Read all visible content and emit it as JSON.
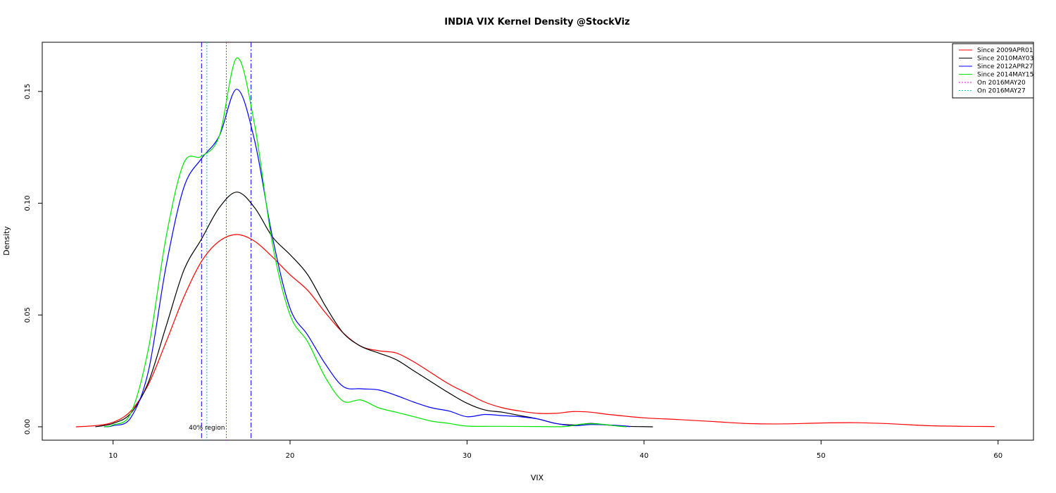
{
  "chart_data": {
    "type": "line",
    "title": "INDIA VIX Kernel Density @StockViz",
    "xlabel": "VIX",
    "ylabel": "Density",
    "xlim": [
      6,
      62
    ],
    "ylim": [
      -0.006,
      0.172
    ],
    "x_ticks": [
      10,
      20,
      30,
      40,
      50,
      60
    ],
    "y_ticks": [
      0.0,
      0.05,
      0.1,
      0.15
    ],
    "x_tick_labels": [
      "10",
      "20",
      "30",
      "40",
      "50",
      "60"
    ],
    "y_tick_labels": [
      "0.00",
      "0.05",
      "0.10",
      "0.15"
    ],
    "grid": false,
    "legend_position": "top-right",
    "series": [
      {
        "name": "Since 2009APR01",
        "color": "#ff0000",
        "style": "solid",
        "points": [
          [
            7.9,
            0
          ],
          [
            9,
            0.0005
          ],
          [
            10,
            0.002
          ],
          [
            11,
            0.007
          ],
          [
            12,
            0.019
          ],
          [
            13,
            0.038
          ],
          [
            14,
            0.058
          ],
          [
            15,
            0.074
          ],
          [
            16,
            0.083
          ],
          [
            17,
            0.086
          ],
          [
            18,
            0.083
          ],
          [
            19,
            0.076
          ],
          [
            20,
            0.068
          ],
          [
            21,
            0.061
          ],
          [
            22,
            0.051
          ],
          [
            23,
            0.042
          ],
          [
            24,
            0.036
          ],
          [
            25,
            0.034
          ],
          [
            26,
            0.033
          ],
          [
            27,
            0.029
          ],
          [
            28,
            0.024
          ],
          [
            29,
            0.019
          ],
          [
            30,
            0.015
          ],
          [
            31,
            0.011
          ],
          [
            32,
            0.0085
          ],
          [
            33,
            0.007
          ],
          [
            34,
            0.006
          ],
          [
            35,
            0.006
          ],
          [
            36,
            0.0068
          ],
          [
            37,
            0.0065
          ],
          [
            38,
            0.0055
          ],
          [
            40,
            0.004
          ],
          [
            42,
            0.0032
          ],
          [
            44,
            0.0023
          ],
          [
            46,
            0.0014
          ],
          [
            48,
            0.0013
          ],
          [
            50,
            0.0017
          ],
          [
            52,
            0.0018
          ],
          [
            54,
            0.0013
          ],
          [
            56,
            0.0005
          ],
          [
            58,
            0.0002
          ],
          [
            59.8,
            0.0001
          ]
        ]
      },
      {
        "name": "Since 2010MAY03",
        "color": "#000000",
        "style": "solid",
        "points": [
          [
            9,
            0
          ],
          [
            10,
            0.0015
          ],
          [
            11,
            0.006
          ],
          [
            12,
            0.02
          ],
          [
            13,
            0.045
          ],
          [
            14,
            0.07
          ],
          [
            15,
            0.084
          ],
          [
            16,
            0.098
          ],
          [
            17,
            0.105
          ],
          [
            18,
            0.098
          ],
          [
            19,
            0.085
          ],
          [
            20,
            0.077
          ],
          [
            21,
            0.068
          ],
          [
            22,
            0.054
          ],
          [
            23,
            0.042
          ],
          [
            24,
            0.036
          ],
          [
            25,
            0.033
          ],
          [
            26,
            0.03
          ],
          [
            27,
            0.025
          ],
          [
            28,
            0.02
          ],
          [
            29,
            0.015
          ],
          [
            30,
            0.0105
          ],
          [
            31,
            0.0075
          ],
          [
            32,
            0.0065
          ],
          [
            33,
            0.005
          ],
          [
            34,
            0.0035
          ],
          [
            35,
            0.0015
          ],
          [
            36,
            0.0008
          ],
          [
            37,
            0.0015
          ],
          [
            38,
            0.0007
          ],
          [
            39,
            0.0002
          ],
          [
            40.5,
            0
          ]
        ]
      },
      {
        "name": "Since 2012APR27",
        "color": "#0000ff",
        "style": "solid",
        "points": [
          [
            9.5,
            0
          ],
          [
            10,
            0.0005
          ],
          [
            11,
            0.004
          ],
          [
            12,
            0.025
          ],
          [
            13,
            0.072
          ],
          [
            14,
            0.107
          ],
          [
            15,
            0.12
          ],
          [
            16,
            0.13
          ],
          [
            17,
            0.151
          ],
          [
            18,
            0.128
          ],
          [
            19,
            0.085
          ],
          [
            20,
            0.053
          ],
          [
            21,
            0.041
          ],
          [
            22,
            0.028
          ],
          [
            23,
            0.018
          ],
          [
            24,
            0.017
          ],
          [
            25,
            0.0165
          ],
          [
            26,
            0.014
          ],
          [
            27,
            0.011
          ],
          [
            28,
            0.0085
          ],
          [
            29,
            0.007
          ],
          [
            30,
            0.0045
          ],
          [
            31,
            0.0055
          ],
          [
            32,
            0.005
          ],
          [
            33,
            0.0045
          ],
          [
            34,
            0.0035
          ],
          [
            35,
            0.0015
          ],
          [
            36,
            0.0005
          ],
          [
            37,
            0.001
          ],
          [
            38,
            0.0008
          ],
          [
            39,
            0.0003
          ],
          [
            39.2,
            0
          ]
        ]
      },
      {
        "name": "Since 2014MAY15",
        "color": "#00e600",
        "style": "solid",
        "points": [
          [
            9.5,
            0
          ],
          [
            10,
            0.0008
          ],
          [
            11,
            0.006
          ],
          [
            12,
            0.035
          ],
          [
            13,
            0.085
          ],
          [
            14,
            0.118
          ],
          [
            15,
            0.121
          ],
          [
            16,
            0.13
          ],
          [
            17,
            0.165
          ],
          [
            18,
            0.135
          ],
          [
            19,
            0.082
          ],
          [
            20,
            0.05
          ],
          [
            21,
            0.038
          ],
          [
            22,
            0.022
          ],
          [
            23,
            0.0115
          ],
          [
            24,
            0.012
          ],
          [
            25,
            0.0085
          ],
          [
            26,
            0.0065
          ],
          [
            27,
            0.0045
          ],
          [
            28,
            0.0025
          ],
          [
            29,
            0.0015
          ],
          [
            30,
            0.0003
          ],
          [
            32,
            0.0002
          ],
          [
            34,
            0.0001
          ],
          [
            35.5,
            0.0001
          ],
          [
            36.5,
            0.0012
          ],
          [
            37.5,
            0.0012
          ],
          [
            38.5,
            0.0003
          ],
          [
            39,
            0
          ]
        ]
      }
    ],
    "vertical_lines": [
      {
        "name": "On 2016MAY20",
        "x": 16.4,
        "color": "#ff00ff",
        "style": "dotted",
        "in_legend": true
      },
      {
        "name": "On 2016MAY27",
        "x": 15.3,
        "color": "#00cccc",
        "style": "dotted",
        "in_legend": true
      },
      {
        "x": 15.0,
        "color": "#0000ff",
        "style": "dashdot",
        "in_legend": false
      },
      {
        "x": 17.8,
        "color": "#0000ff",
        "style": "dashdot",
        "in_legend": false
      }
    ],
    "annotations": [
      {
        "text": "40% region",
        "x": 15.3,
        "y": 0.0
      }
    ]
  }
}
